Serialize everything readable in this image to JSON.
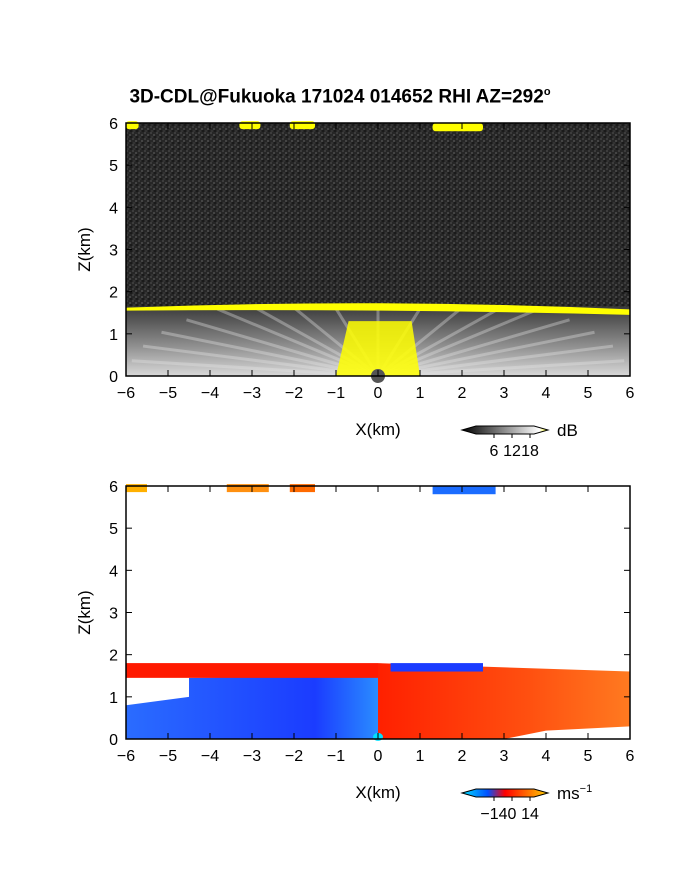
{
  "title": {
    "main": "3D-CDL@Fukuoka 171024 014652 RHI AZ=292",
    "superscript": "o"
  },
  "chart_data": [
    {
      "type": "heatmap",
      "name": "reflectivity",
      "xlabel": "X(km)",
      "ylabel": "Z(km)",
      "xlim": [
        -6,
        6
      ],
      "ylim": [
        0,
        6
      ],
      "xticks": [
        "-6",
        "-5",
        "-4",
        "-3",
        "-2",
        "-1",
        "0",
        "1",
        "2",
        "3",
        "4",
        "5",
        "6"
      ],
      "yticks": [
        "0",
        "1",
        "2",
        "3",
        "4",
        "5",
        "6"
      ],
      "colorbar": {
        "unit": "dB",
        "ticks": [
          "6",
          "12",
          "18"
        ],
        "colors": [
          "#000000",
          "#ffffff",
          "#ffff00"
        ]
      },
      "features": [
        {
          "kind": "layer_top",
          "z_km": 1.65
        },
        {
          "kind": "cloud",
          "x_km": [
            -6.0,
            -5.7
          ],
          "z_km": 5.95
        },
        {
          "kind": "cloud",
          "x_km": [
            -3.3,
            -2.8
          ],
          "z_km": 5.95
        },
        {
          "kind": "cloud",
          "x_km": [
            -2.1,
            -1.5
          ],
          "z_km": 5.95
        },
        {
          "kind": "cloud",
          "x_km": [
            1.3,
            2.5
          ],
          "z_km": 5.9
        }
      ]
    },
    {
      "type": "heatmap",
      "name": "doppler_velocity",
      "xlabel": "X(km)",
      "ylabel": "Z(km)",
      "xlim": [
        -6,
        6
      ],
      "ylim": [
        0,
        6
      ],
      "xticks": [
        "-6",
        "-5",
        "-4",
        "-3",
        "-2",
        "-1",
        "0",
        "1",
        "2",
        "3",
        "4",
        "5",
        "6"
      ],
      "yticks": [
        "0",
        "1",
        "2",
        "3",
        "4",
        "5",
        "6"
      ],
      "colorbar": {
        "unit": "ms",
        "unit_sup": "-1",
        "ticks": [
          "-14",
          "0",
          "14"
        ],
        "colors": [
          "#00e0ff",
          "#0050ff",
          "#ff0000",
          "#ffd000"
        ]
      },
      "features": [
        {
          "kind": "layer_top",
          "z_km": 1.7
        },
        {
          "kind": "negative_region",
          "x_km": [
            -6,
            0
          ]
        },
        {
          "kind": "positive_region",
          "x_km": [
            0,
            6
          ]
        },
        {
          "kind": "cloud",
          "x_km": [
            -6.0,
            -5.5
          ],
          "z_km": 5.95
        },
        {
          "kind": "cloud",
          "x_km": [
            -3.6,
            -2.6
          ],
          "z_km": 5.95
        },
        {
          "kind": "cloud",
          "x_km": [
            -2.1,
            -1.5
          ],
          "z_km": 5.95
        },
        {
          "kind": "cloud",
          "x_km": [
            1.3,
            2.8
          ],
          "z_km": 5.9
        }
      ]
    }
  ]
}
